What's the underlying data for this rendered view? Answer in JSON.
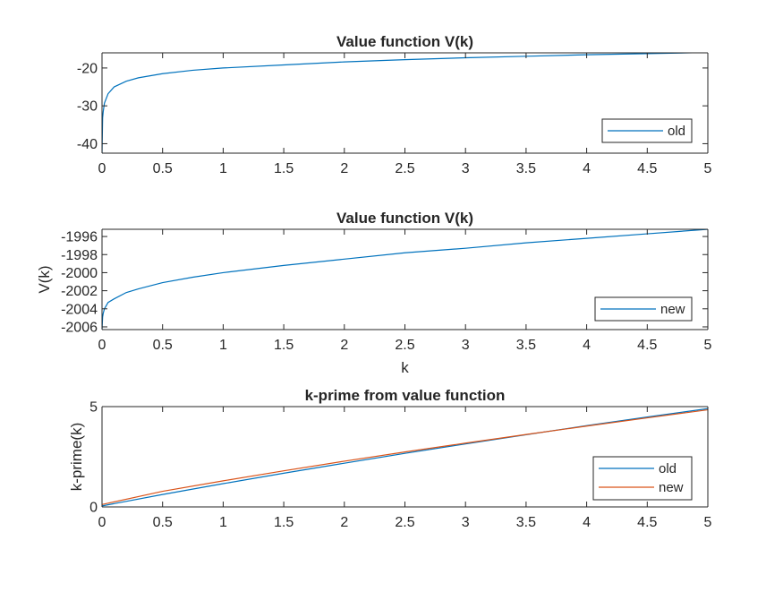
{
  "colors": {
    "old": "#0072BD",
    "new": "#D95319",
    "axis": "#262626",
    "background": "#FFFFFF"
  },
  "chart_data": [
    {
      "type": "line",
      "title": "Value function V(k)",
      "xlabel": "",
      "ylabel": "",
      "xlim": [
        0,
        5
      ],
      "ylim": [
        -42.5,
        -16
      ],
      "xticks": [
        "0",
        "0.5",
        "1",
        "1.5",
        "2",
        "2.5",
        "3",
        "3.5",
        "4",
        "4.5",
        "5"
      ],
      "yticks": [
        "-40",
        "-30",
        "-20"
      ],
      "ytick_values": [
        -40,
        -30,
        -20
      ],
      "grid": false,
      "legend": {
        "placement": "bottom-right",
        "entries": [
          "old"
        ]
      },
      "series": [
        {
          "name": "old",
          "color": "#0072BD",
          "x": [
            0.0001,
            0.005,
            0.01,
            0.02,
            0.05,
            0.1,
            0.2,
            0.3,
            0.5,
            0.75,
            1,
            1.5,
            2,
            2.5,
            3,
            3.5,
            4,
            4.5,
            5
          ],
          "y": [
            -42.5,
            -33.2,
            -31.5,
            -29.3,
            -26.8,
            -25.0,
            -23.5,
            -22.6,
            -21.5,
            -20.6,
            -20.0,
            -19.2,
            -18.4,
            -17.8,
            -17.3,
            -16.9,
            -16.5,
            -16.2,
            -15.9
          ]
        }
      ]
    },
    {
      "type": "line",
      "title": "Value function V(k)",
      "xlabel": "k",
      "ylabel": "V(k)",
      "xlim": [
        0,
        5
      ],
      "ylim": [
        -2006.3,
        -1995.2
      ],
      "xticks": [
        "0",
        "0.5",
        "1",
        "1.5",
        "2",
        "2.5",
        "3",
        "3.5",
        "4",
        "4.5",
        "5"
      ],
      "yticks": [
        "-2006",
        "-2004",
        "-2002",
        "-2000",
        "-1998",
        "-1996"
      ],
      "ytick_values": [
        -2006,
        -2004,
        -2002,
        -2000,
        -1998,
        -1996
      ],
      "grid": false,
      "legend": {
        "placement": "bottom-right",
        "entries": [
          "new"
        ]
      },
      "series": [
        {
          "name": "new",
          "color": "#0072BD",
          "x": [
            0.0001,
            0.005,
            0.01,
            0.02,
            0.05,
            0.1,
            0.2,
            0.3,
            0.5,
            0.75,
            1,
            1.5,
            2,
            2.5,
            3,
            3.5,
            4,
            4.5,
            5
          ],
          "y": [
            -2006.3,
            -2004.9,
            -2004.5,
            -2004.0,
            -2003.3,
            -2002.9,
            -2002.2,
            -2001.8,
            -2001.1,
            -2000.5,
            -2000.0,
            -1999.2,
            -1998.5,
            -1997.8,
            -1997.3,
            -1996.7,
            -1996.2,
            -1995.7,
            -1995.2
          ]
        }
      ]
    },
    {
      "type": "line",
      "title": "k-prime from value function",
      "xlabel": "",
      "ylabel": "k-prime(k)",
      "xlim": [
        0,
        5
      ],
      "ylim": [
        0,
        5
      ],
      "xticks": [
        "0",
        "0.5",
        "1",
        "1.5",
        "2",
        "2.5",
        "3",
        "3.5",
        "4",
        "4.5",
        "5"
      ],
      "yticks": [
        "0",
        "5"
      ],
      "ytick_values": [
        0,
        5
      ],
      "grid": false,
      "legend": {
        "placement": "bottom-right",
        "entries": [
          "old",
          "new"
        ]
      },
      "series": [
        {
          "name": "old",
          "color": "#0072BD",
          "x": [
            0,
            0.5,
            1,
            1.5,
            2,
            2.5,
            3,
            3.5,
            4,
            4.5,
            5
          ],
          "y": [
            0.05,
            0.62,
            1.16,
            1.68,
            2.18,
            2.67,
            3.14,
            3.6,
            4.05,
            4.48,
            4.9
          ]
        },
        {
          "name": "new",
          "color": "#D95319",
          "x": [
            0,
            0.5,
            1,
            1.5,
            2,
            2.5,
            3,
            3.5,
            4,
            4.5,
            5
          ],
          "y": [
            0.12,
            0.78,
            1.3,
            1.8,
            2.28,
            2.74,
            3.18,
            3.61,
            4.03,
            4.44,
            4.84
          ]
        }
      ]
    }
  ]
}
